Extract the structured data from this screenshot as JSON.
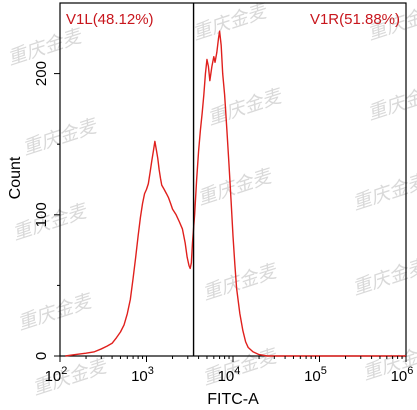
{
  "chart_data": {
    "type": "line",
    "title": "",
    "xlabel": "FITC-A",
    "ylabel": "Count",
    "x_scale": "log",
    "xlim": [
      100,
      1000000
    ],
    "ylim": [
      0,
      250
    ],
    "grid": false,
    "x_ticks": [
      {
        "value": 100,
        "base": "10",
        "exp": "2"
      },
      {
        "value": 1000,
        "base": "10",
        "exp": "3"
      },
      {
        "value": 10000,
        "base": "10",
        "exp": "4"
      },
      {
        "value": 100000,
        "base": "10",
        "exp": "5"
      },
      {
        "value": 1000000,
        "base": "10",
        "exp": "6"
      }
    ],
    "y_ticks": [
      {
        "value": 0,
        "label": "0"
      },
      {
        "value": 100,
        "label": "100"
      },
      {
        "value": 200,
        "label": "200"
      }
    ],
    "gates": [
      {
        "name": "V1L",
        "percent": "48.12%",
        "label": "V1L(48.12%)",
        "side": "left"
      },
      {
        "name": "V1R",
        "percent": "51.88%",
        "label": "V1R(51.88%)",
        "side": "right"
      }
    ],
    "gate_divider_x": 3500,
    "series": [
      {
        "color": "#e0201d",
        "points": [
          [
            115,
            0
          ],
          [
            150,
            1
          ],
          [
            200,
            2
          ],
          [
            250,
            3
          ],
          [
            300,
            5
          ],
          [
            350,
            7
          ],
          [
            400,
            9
          ],
          [
            450,
            13
          ],
          [
            500,
            17
          ],
          [
            550,
            22
          ],
          [
            600,
            30
          ],
          [
            650,
            40
          ],
          [
            700,
            55
          ],
          [
            750,
            70
          ],
          [
            800,
            85
          ],
          [
            850,
            98
          ],
          [
            900,
            108
          ],
          [
            950,
            115
          ],
          [
            1000,
            118
          ],
          [
            1050,
            122
          ],
          [
            1100,
            130
          ],
          [
            1150,
            138
          ],
          [
            1200,
            145
          ],
          [
            1250,
            152
          ],
          [
            1300,
            146
          ],
          [
            1350,
            140
          ],
          [
            1400,
            132
          ],
          [
            1450,
            126
          ],
          [
            1500,
            121
          ],
          [
            1600,
            118
          ],
          [
            1700,
            115
          ],
          [
            1800,
            112
          ],
          [
            1900,
            108
          ],
          [
            2000,
            104
          ],
          [
            2200,
            100
          ],
          [
            2400,
            95
          ],
          [
            2600,
            90
          ],
          [
            2800,
            80
          ],
          [
            2950,
            70
          ],
          [
            3100,
            64
          ],
          [
            3200,
            62
          ],
          [
            3300,
            66
          ],
          [
            3400,
            80
          ],
          [
            3600,
            100
          ],
          [
            3800,
            125
          ],
          [
            4000,
            145
          ],
          [
            4200,
            160
          ],
          [
            4400,
            172
          ],
          [
            4600,
            185
          ],
          [
            4800,
            200
          ],
          [
            5000,
            210
          ],
          [
            5200,
            205
          ],
          [
            5400,
            195
          ],
          [
            5700,
            205
          ],
          [
            6000,
            212
          ],
          [
            6200,
            208
          ],
          [
            6500,
            215
          ],
          [
            6800,
            225
          ],
          [
            7000,
            230
          ],
          [
            7300,
            220
          ],
          [
            7600,
            200
          ],
          [
            8000,
            185
          ],
          [
            8500,
            160
          ],
          [
            9000,
            135
          ],
          [
            9500,
            110
          ],
          [
            10000,
            85
          ],
          [
            10500,
            65
          ],
          [
            11000,
            48
          ],
          [
            12000,
            30
          ],
          [
            13000,
            18
          ],
          [
            14000,
            10
          ],
          [
            15000,
            6
          ],
          [
            17000,
            3
          ],
          [
            20000,
            1
          ],
          [
            25000,
            0
          ],
          [
            1000000,
            0
          ]
        ]
      }
    ]
  },
  "watermark": {
    "text": "重庆金麦"
  }
}
